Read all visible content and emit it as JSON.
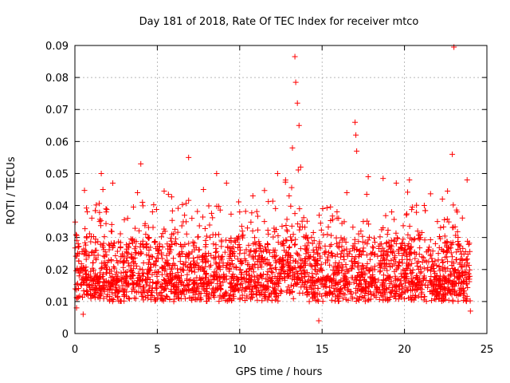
{
  "chart_data": {
    "type": "scatter",
    "title": "Day 181 of 2018, Rate Of TEC Index for receiver mtco",
    "xlabel": "GPS time / hours",
    "ylabel": "ROTI / TECUs",
    "xlim": [
      0,
      25
    ],
    "ylim": [
      0,
      0.09
    ],
    "xticks": [
      0,
      5,
      10,
      15,
      20,
      25
    ],
    "yticks": [
      0,
      0.01,
      0.02,
      0.03,
      0.04,
      0.05,
      0.06,
      0.07,
      0.08,
      0.09
    ],
    "ytick_labels": [
      "0",
      "0.01",
      "0.02",
      "0.03",
      "0.04",
      "0.05",
      "0.06",
      "0.07",
      "0.08",
      "0.09"
    ],
    "grid": true,
    "marker": "+",
    "color": "#ff0000",
    "data_range_hours": [
      0,
      24
    ],
    "typical_band": [
      0.005,
      0.03
    ],
    "series": [
      {
        "name": "ROTI",
        "points": [
          [
            0.1,
            0.008
          ],
          [
            0.3,
            0.019
          ],
          [
            0.5,
            0.006
          ],
          [
            0.8,
            0.012
          ],
          [
            1.0,
            0.015
          ],
          [
            1.3,
            0.026
          ],
          [
            1.5,
            0.035
          ],
          [
            1.6,
            0.05
          ],
          [
            1.7,
            0.045
          ],
          [
            1.9,
            0.038
          ],
          [
            2.1,
            0.02
          ],
          [
            2.3,
            0.047
          ],
          [
            2.5,
            0.016
          ],
          [
            2.8,
            0.024
          ],
          [
            3.0,
            0.013
          ],
          [
            3.2,
            0.036
          ],
          [
            3.5,
            0.019
          ],
          [
            3.8,
            0.044
          ],
          [
            4.0,
            0.053
          ],
          [
            4.1,
            0.041
          ],
          [
            4.3,
            0.031
          ],
          [
            4.6,
            0.012
          ],
          [
            5.0,
            0.011
          ],
          [
            5.5,
            0.014
          ],
          [
            6.0,
            0.01
          ],
          [
            6.5,
            0.016
          ],
          [
            6.9,
            0.055
          ],
          [
            7.1,
            0.036
          ],
          [
            7.5,
            0.02
          ],
          [
            7.8,
            0.045
          ],
          [
            8.2,
            0.03
          ],
          [
            8.6,
            0.05
          ],
          [
            9.0,
            0.022
          ],
          [
            9.2,
            0.047
          ],
          [
            9.6,
            0.025
          ],
          [
            10.0,
            0.038
          ],
          [
            10.4,
            0.014
          ],
          [
            10.8,
            0.043
          ],
          [
            11.2,
            0.028
          ],
          [
            11.5,
            0.035
          ],
          [
            12.0,
            0.019
          ],
          [
            12.3,
            0.05
          ],
          [
            12.7,
            0.026
          ],
          [
            13.0,
            0.043
          ],
          [
            13.2,
            0.058
          ],
          [
            13.35,
            0.0865
          ],
          [
            13.4,
            0.0785
          ],
          [
            13.5,
            0.072
          ],
          [
            13.6,
            0.065
          ],
          [
            13.7,
            0.052
          ],
          [
            14.0,
            0.03
          ],
          [
            14.4,
            0.015
          ],
          [
            14.8,
            0.004
          ],
          [
            15.2,
            0.012
          ],
          [
            15.6,
            0.025
          ],
          [
            16.0,
            0.036
          ],
          [
            16.5,
            0.044
          ],
          [
            17.0,
            0.066
          ],
          [
            17.05,
            0.062
          ],
          [
            17.1,
            0.057
          ],
          [
            17.5,
            0.035
          ],
          [
            17.8,
            0.049
          ],
          [
            18.2,
            0.021
          ],
          [
            18.6,
            0.028
          ],
          [
            19.0,
            0.018
          ],
          [
            19.5,
            0.047
          ],
          [
            20.0,
            0.026
          ],
          [
            20.3,
            0.048
          ],
          [
            20.8,
            0.032
          ],
          [
            21.2,
            0.04
          ],
          [
            21.6,
            0.02
          ],
          [
            22.0,
            0.035
          ],
          [
            22.3,
            0.042
          ],
          [
            22.9,
            0.056
          ],
          [
            23.0,
            0.0895
          ],
          [
            23.2,
            0.038
          ],
          [
            23.5,
            0.021
          ],
          [
            23.8,
            0.048
          ],
          [
            24.0,
            0.007
          ]
        ]
      }
    ]
  }
}
